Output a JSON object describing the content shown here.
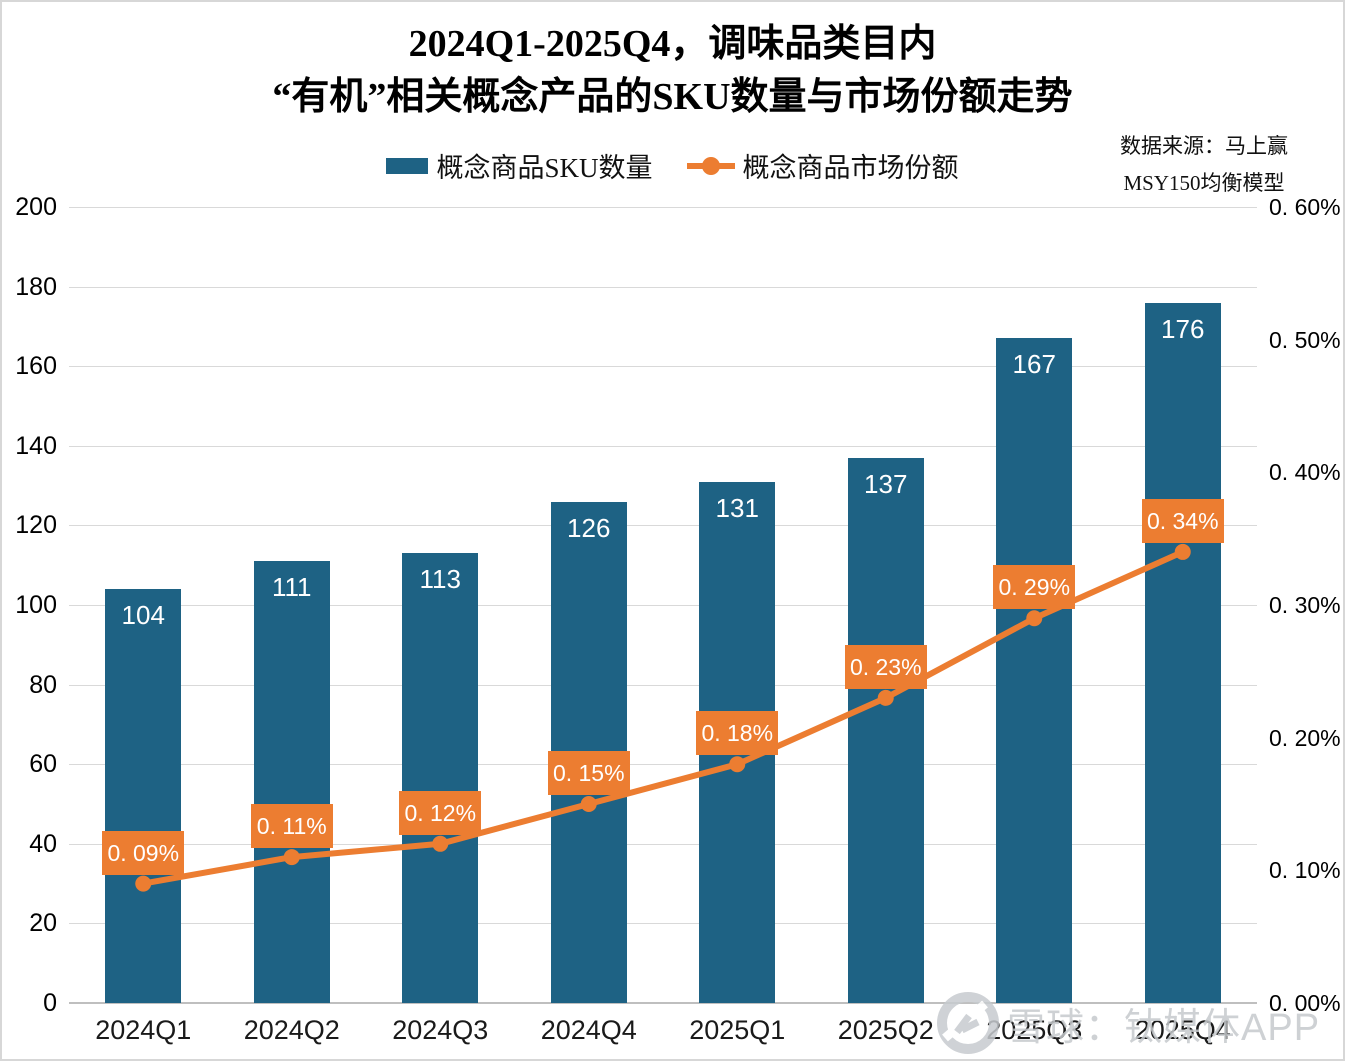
{
  "title": {
    "line1": "2024Q1-2025Q4，调味品类目内",
    "line2": "“有机”相关概念产品的SKU数量与市场份额走势"
  },
  "legend": {
    "position": "top",
    "items": [
      {
        "label": "概念商品SKU数量",
        "marker": "bar-swatch",
        "color": "#1E6284"
      },
      {
        "label": "概念商品市场份额",
        "marker": "line-dot",
        "color": "#EC7D31"
      }
    ]
  },
  "source": {
    "line1": "数据来源：马上赢",
    "line2": "MSY150均衡模型"
  },
  "watermark": {
    "icon": "xueqiu-logo",
    "text": "雪球：钛媒体APP",
    "color": "#C6CACD"
  },
  "colors": {
    "bar": "#1E6284",
    "line": "#EC7D31",
    "bar_value_text": "#FFFFFF",
    "pct_label_bg": "#EC7D31",
    "pct_label_text": "#FFFFFF",
    "gridline": "#D9D9D9",
    "page_border": "#D7D7D7"
  },
  "chart_data": {
    "type": "bar+line combo",
    "title": "2024Q1-2025Q4，调味品类目内“有机”相关概念产品的SKU数量与市场份额走势",
    "categories": [
      "2024Q1",
      "2024Q2",
      "2024Q3",
      "2024Q4",
      "2025Q1",
      "2025Q2",
      "2025Q3",
      "2025Q4"
    ],
    "series": [
      {
        "name": "概念商品SKU数量",
        "type": "bar",
        "axis": "left",
        "color": "#1E6284",
        "values": [
          104,
          111,
          113,
          126,
          131,
          137,
          167,
          176
        ],
        "data_labels": [
          "104",
          "111",
          "113",
          "126",
          "131",
          "137",
          "167",
          "176"
        ]
      },
      {
        "name": "概念商品市场份额",
        "type": "line",
        "axis": "right",
        "color": "#EC7D31",
        "values_percent": [
          0.09,
          0.11,
          0.12,
          0.15,
          0.18,
          0.23,
          0.29,
          0.34
        ],
        "data_labels": [
          "0. 09%",
          "0. 11%",
          "0. 12%",
          "0. 15%",
          "0. 18%",
          "0. 23%",
          "0. 29%",
          "0. 34%"
        ]
      }
    ],
    "left_axis": {
      "min": 0,
      "max": 200,
      "step": 20,
      "tick_labels": [
        "200",
        "180",
        "160",
        "140",
        "120",
        "100",
        "80",
        "60",
        "40",
        "20",
        "0"
      ]
    },
    "right_axis": {
      "min": 0,
      "max": 0.6,
      "step": 0.1,
      "tick_labels": [
        "0. 60%",
        "0. 50%",
        "0. 40%",
        "0. 30%",
        "0. 20%",
        "0. 10%",
        "0. 00%"
      ]
    },
    "gridlines": "horizontal",
    "legend_position": "top"
  }
}
